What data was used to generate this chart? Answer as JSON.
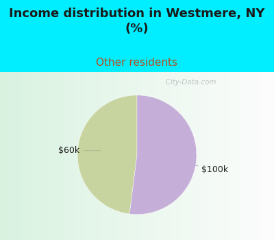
{
  "title": "Income distribution in Westmere, NY\n(%)",
  "subtitle": "Other residents",
  "slices": [
    {
      "label": "$60k",
      "value": 48,
      "color": "#c8d4a0"
    },
    {
      "label": "$100k",
      "value": 52,
      "color": "#c5aed8"
    }
  ],
  "title_fontsize": 13,
  "subtitle_fontsize": 11,
  "title_color": "#1a1a1a",
  "subtitle_color": "#b05020",
  "bg_color": "#00eeff",
  "chart_bg_left": "#d0eedd",
  "chart_bg_right": "#f8f8ff",
  "label_fontsize": 9,
  "label_color": "#1a1a1a",
  "watermark": "  City-Data.com",
  "startangle": 90,
  "pie_size": 0.72
}
